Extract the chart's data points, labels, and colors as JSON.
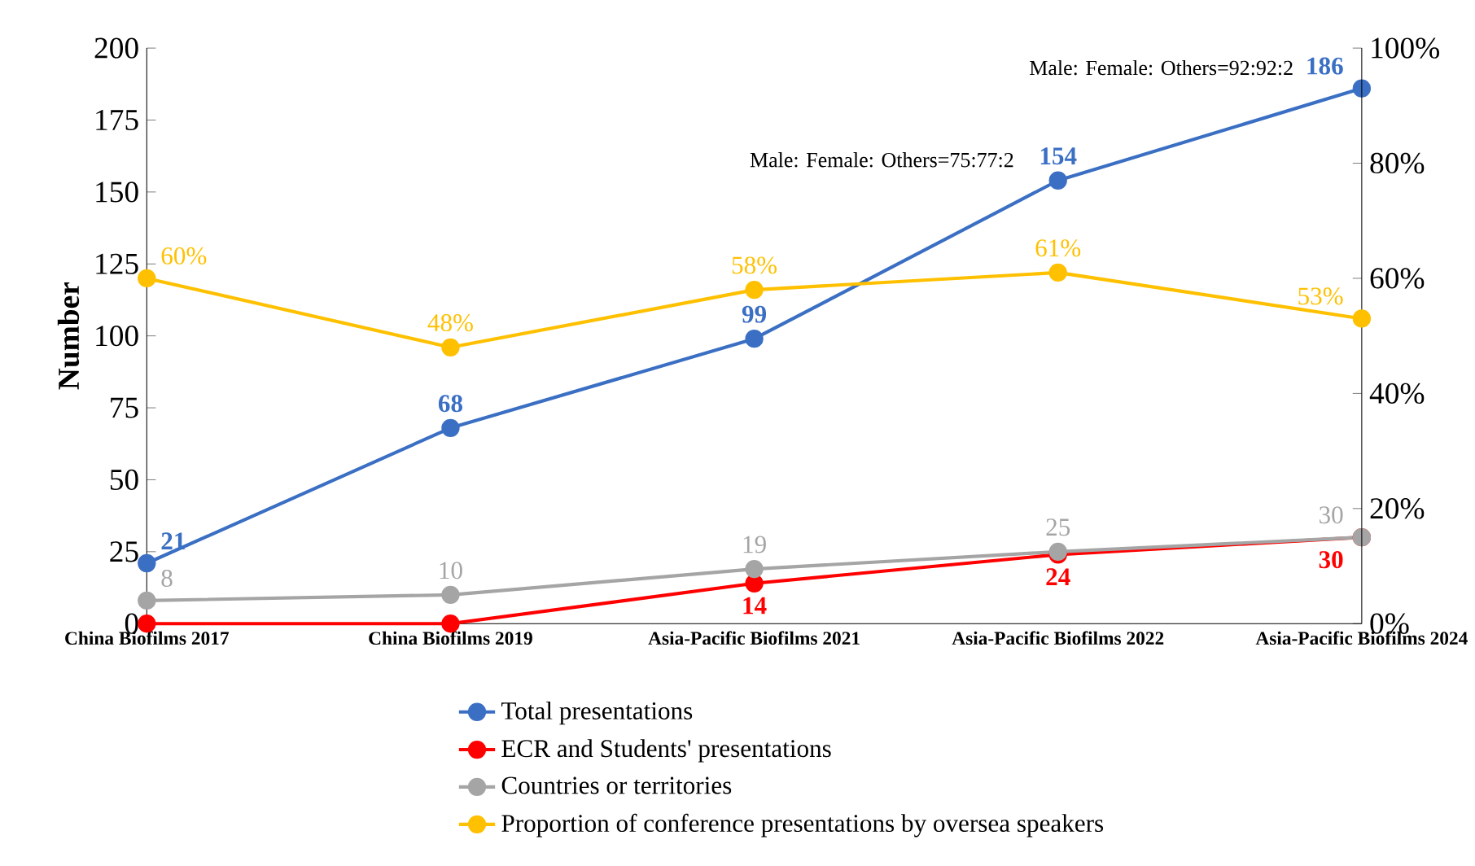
{
  "chart_data": {
    "type": "line",
    "ylabel": "Number",
    "categories": [
      "China Biofilms 2017",
      "China Biofilms 2019",
      "Asia-Pacific Biofilms 2021",
      "Asia-Pacific Biofilms 2022",
      "Asia-Pacific Biofilms 2024"
    ],
    "series": [
      {
        "name": "Total presentations",
        "color": "#3a6fc4",
        "values": [
          21,
          68,
          99,
          154,
          186
        ],
        "value_labels": [
          "21",
          "68",
          "99",
          "154",
          "186"
        ]
      },
      {
        "name": "ECR and Students' presentations",
        "color": "#ff0000",
        "values": [
          0,
          0,
          14,
          24,
          30
        ],
        "value_labels": [
          null,
          null,
          "14",
          "24",
          "30"
        ]
      },
      {
        "name": "Countries or territories",
        "color": "#a5a5a5",
        "values": [
          8,
          10,
          19,
          25,
          30
        ],
        "value_labels": [
          "8",
          "10",
          "19",
          "25",
          "30"
        ]
      },
      {
        "name": "Proportion of conference presentations by oversea speakers",
        "color": "#ffc000",
        "axis": "y2",
        "values": [
          60,
          48,
          58,
          61,
          53
        ],
        "value_labels": [
          "60%",
          "48%",
          "58%",
          "61%",
          "53%"
        ]
      }
    ],
    "ylim": [
      0,
      200
    ],
    "yticks": [
      0,
      25,
      50,
      75,
      100,
      125,
      150,
      175,
      200
    ],
    "y2lim": [
      0,
      100
    ],
    "y2ticks": [
      {
        "value": 0,
        "label": "0%"
      },
      {
        "value": 20,
        "label": "20%"
      },
      {
        "value": 40,
        "label": "40%"
      },
      {
        "value": 60,
        "label": "60%"
      },
      {
        "value": 80,
        "label": "80%"
      },
      {
        "value": 100,
        "label": "100%"
      }
    ],
    "annotations": [
      "Male: Female: Others=75:77:2",
      "Male: Female: Others=92:92:2"
    ],
    "marker": "circle",
    "line_style": "solid",
    "grid": false,
    "legend": "bottom"
  }
}
